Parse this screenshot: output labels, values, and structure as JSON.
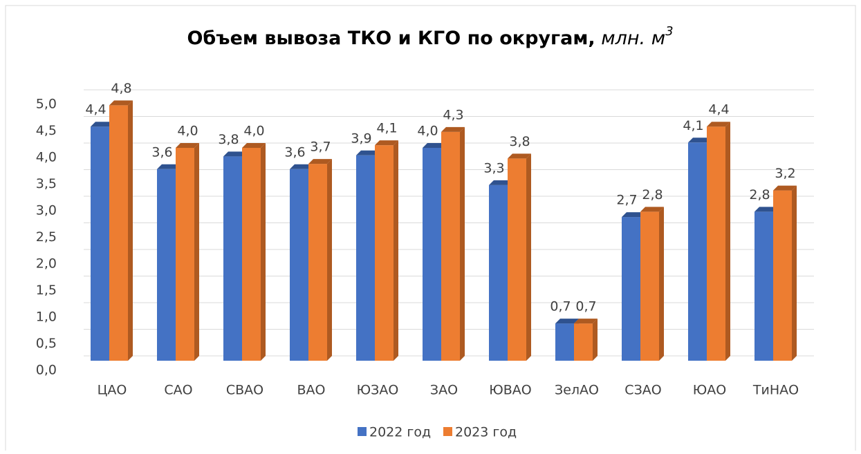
{
  "chart_data": {
    "type": "bar3d",
    "title": "Объем вывоза ТКО и КГО по округам,",
    "title_unit": "млн. м",
    "title_unit_sup": "3",
    "categories": [
      "ЦАО",
      "САО",
      "СВАО",
      "ВАО",
      "ЮЗАО",
      "ЗАО",
      "ЮВАО",
      "ЗелАО",
      "СЗАО",
      "ЮАО",
      "ТиНАО"
    ],
    "series": [
      {
        "name": "2022 год",
        "color": "#4472c4",
        "side": "#2f528f",
        "values": [
          4.4,
          3.6,
          3.84,
          3.6,
          3.86,
          4.0,
          3.3,
          0.7,
          2.7,
          4.1,
          2.8
        ],
        "value_labels": [
          "4,4",
          "3,6",
          "3,8",
          "3,6",
          "3,9",
          "4,0",
          "3,3",
          "0,7",
          "2,7",
          "4,1",
          "2,8"
        ]
      },
      {
        "name": "2023 год",
        "color": "#ed7d31",
        "side": "#ae5a21",
        "values": [
          4.8,
          4.0,
          4.0,
          3.7,
          4.05,
          4.3,
          3.8,
          0.7,
          2.8,
          4.4,
          3.2
        ],
        "value_labels": [
          "4,8",
          "4,0",
          "4,0",
          "3,7",
          "4,1",
          "4,3",
          "3,8",
          "0,7",
          "2,8",
          "4,4",
          "3,2"
        ]
      }
    ],
    "ylim": [
      0,
      5
    ],
    "yticks": [
      {
        "value": 0,
        "label": "0,0"
      },
      {
        "value": 0.5,
        "label": "0,5"
      },
      {
        "value": 1,
        "label": "1,0"
      },
      {
        "value": 1.5,
        "label": "1,5"
      },
      {
        "value": 2,
        "label": "2,0"
      },
      {
        "value": 2.5,
        "label": "2,5"
      },
      {
        "value": 3,
        "label": "3,0"
      },
      {
        "value": 3.5,
        "label": "3,5"
      },
      {
        "value": 4,
        "label": "4,0"
      },
      {
        "value": 4.5,
        "label": "4,5"
      },
      {
        "value": 5,
        "label": "5,0"
      }
    ],
    "grid": true,
    "legend": "bottom"
  }
}
